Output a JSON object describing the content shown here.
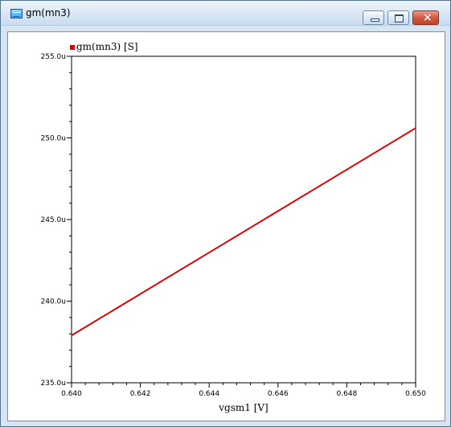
{
  "window": {
    "title": "gm(mn3)",
    "icon": "waveform-window-icon",
    "controls": {
      "minimize_icon": "minimize-icon",
      "maximize_icon": "maximize-icon",
      "close_icon": "close-icon",
      "close_glyph": "×"
    }
  },
  "colors": {
    "series": "#e00000",
    "axes": "#000000",
    "plot_background": "#ffffff",
    "window_frame": "#d7e4f2"
  },
  "chart_data": {
    "type": "line",
    "title": "",
    "xlabel": "vgsm1 [V]",
    "ylabel": "",
    "xlim": [
      0.64,
      0.65
    ],
    "ylim": [
      235.0,
      255.0
    ],
    "grid": false,
    "legend_position": "top-left",
    "x_ticks": [
      "0.640",
      "0.642",
      "0.644",
      "0.646",
      "0.648",
      "0.650"
    ],
    "y_ticks": [
      "235.0u",
      "240.0u",
      "245.0u",
      "250.0u",
      "255.0u"
    ],
    "series": [
      {
        "name": "gm(mn3)",
        "unit": "[S]",
        "color": "#e00000",
        "x": [
          0.64,
          0.65
        ],
        "y": [
          237.9,
          250.6
        ]
      }
    ]
  }
}
